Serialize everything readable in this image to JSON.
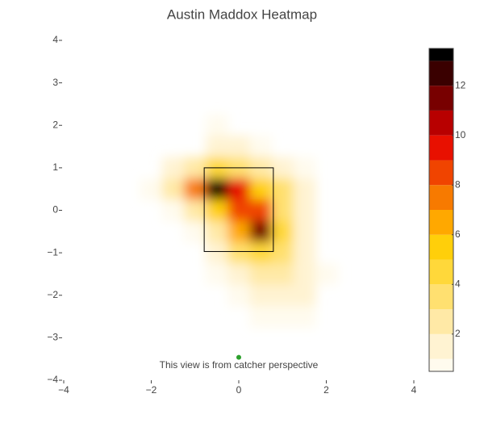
{
  "chart_data": {
    "type": "contour",
    "title": "Austin Maddox Heatmap",
    "annotation": "This view is from catcher perspective",
    "x": [
      -2,
      -1.5,
      -1,
      -0.5,
      0,
      0.5,
      1,
      1.5,
      2
    ],
    "y": [
      2,
      1.5,
      1,
      0.5,
      0,
      -0.5,
      -1,
      -1.5,
      -2,
      -2.5,
      -3
    ],
    "z": [
      [
        0,
        0,
        0,
        0.8,
        0,
        0,
        0,
        0,
        0
      ],
      [
        0,
        0,
        0.3,
        1.5,
        1.2,
        0.8,
        0,
        0,
        0
      ],
      [
        0,
        1,
        2.5,
        4,
        3.5,
        2.5,
        1.5,
        0.5,
        0
      ],
      [
        0.8,
        2,
        7,
        13.5,
        9,
        5,
        3,
        1.5,
        0
      ],
      [
        0,
        0.5,
        2,
        5,
        8.5,
        8,
        3.5,
        1.5,
        0
      ],
      [
        0,
        0,
        0.5,
        2.5,
        6,
        11,
        4,
        1.5,
        0
      ],
      [
        0,
        0,
        0,
        1.2,
        3,
        4,
        3,
        1.5,
        0.3
      ],
      [
        0,
        0,
        0,
        0.5,
        1.5,
        2,
        2,
        1.5,
        0.5
      ],
      [
        0,
        0,
        0,
        0,
        0.8,
        1.2,
        1.5,
        1.2,
        0.3
      ],
      [
        0,
        0,
        0,
        0,
        0,
        0.5,
        0.8,
        0.5,
        0
      ],
      [
        0,
        0,
        0,
        0,
        0,
        0,
        0,
        0,
        0
      ]
    ],
    "xlim": [
      -4,
      4
    ],
    "ylim": [
      -4,
      4
    ],
    "xticks": [
      {
        "value": -4,
        "label": "−4"
      },
      {
        "value": -2,
        "label": "−2"
      },
      0,
      2,
      4
    ],
    "yticks": [
      {
        "value": -4,
        "label": "−4"
      },
      {
        "value": -3,
        "label": "−3"
      },
      {
        "value": -2,
        "label": "−2"
      },
      {
        "value": -1,
        "label": "−1"
      },
      0,
      1,
      2,
      3,
      4
    ],
    "colorbar": {
      "zlim": [
        0.5,
        13.5
      ],
      "levels": [
        1,
        2,
        3,
        4,
        5,
        6,
        7,
        8,
        9,
        10,
        11,
        12,
        13
      ],
      "colors": [
        "#fffbee",
        "#fff3d2",
        "#ffe9a6",
        "#ffe070",
        "#ffd83a",
        "#ffcf0a",
        "#ffa800",
        "#f77a00",
        "#f04400",
        "#e81000",
        "#b80000",
        "#780000",
        "#3a0000",
        "#000000"
      ],
      "ticks": [
        2,
        4,
        6,
        8,
        10,
        12
      ]
    },
    "strike_zone": {
      "x": [
        -0.79,
        0.79
      ],
      "y": [
        -0.97,
        1.0
      ],
      "color": "#000000"
    },
    "point": {
      "x": 0,
      "y": -3.46,
      "color": "#2ca02c"
    }
  }
}
